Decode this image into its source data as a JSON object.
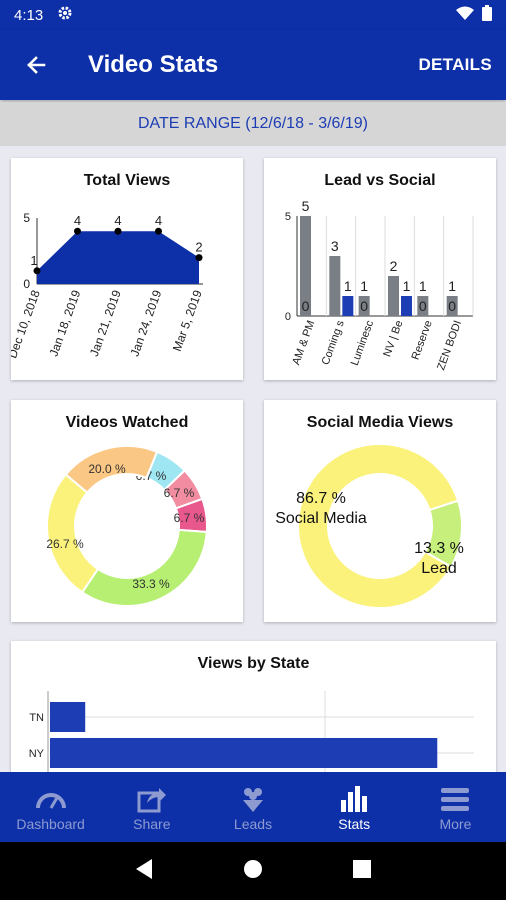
{
  "status": {
    "time": "4:13"
  },
  "appbar": {
    "title": "Video Stats",
    "details_label": "DETAILS"
  },
  "date_range": "DATE RANGE (12/6/18 - 3/6/19)",
  "colors": {
    "primary": "#0d2fa8",
    "bar_gray": "#7a7f85",
    "bar_blue": "#1d3db4"
  },
  "cards": {
    "total_views": {
      "title": "Total Views"
    },
    "lead_vs_social": {
      "title": "Lead vs Social"
    },
    "videos_watched": {
      "title": "Videos Watched"
    },
    "social_media_views": {
      "title": "Social Media Views"
    },
    "views_by_state": {
      "title": "Views by State"
    }
  },
  "nav": [
    {
      "label": "Dashboard",
      "icon": "gauge-icon"
    },
    {
      "label": "Share",
      "icon": "share-icon"
    },
    {
      "label": "Leads",
      "icon": "leads-icon"
    },
    {
      "label": "Stats",
      "icon": "bar-chart-icon",
      "active": true
    },
    {
      "label": "More",
      "icon": "menu-icon"
    }
  ],
  "chart_data": [
    {
      "type": "area",
      "title": "Total Views",
      "x": [
        "Dec 10, 2018",
        "Jan 18, 2019",
        "Jan 21, 2019",
        "Jan 24, 2019",
        "Mar 5, 2019"
      ],
      "values": [
        1,
        4,
        4,
        4,
        2
      ],
      "ylim": [
        0,
        5
      ],
      "yticks": [
        "0",
        "5"
      ]
    },
    {
      "type": "bar",
      "title": "Lead vs Social",
      "categories": [
        "AM & PM",
        "Coming s",
        "Luminesc",
        "NV | Be",
        "Reserve",
        "ZEN BODI"
      ],
      "series": [
        {
          "values": [
            5,
            3,
            1,
            2,
            1,
            1
          ],
          "color": "#7a7f85"
        },
        {
          "values": [
            0,
            1,
            0,
            1,
            0,
            0
          ],
          "color": "#1d3db4"
        }
      ],
      "ylim": [
        0,
        5
      ],
      "yticks": [
        "0",
        "5"
      ]
    },
    {
      "type": "pie",
      "title": "Videos Watched",
      "slices": [
        {
          "label": "6.7 %",
          "value": 6.7,
          "color": "#9ee6f2"
        },
        {
          "label": "6.7 %",
          "value": 6.7,
          "color": "#f28ca0"
        },
        {
          "label": "6.7 %",
          "value": 6.7,
          "color": "#e8588c"
        },
        {
          "label": "33.3 %",
          "value": 33.3,
          "color": "#b6ef72"
        },
        {
          "label": "26.7 %",
          "value": 26.7,
          "color": "#fbf27c"
        },
        {
          "label": "20.0 %",
          "value": 20.0,
          "color": "#fbc784"
        }
      ]
    },
    {
      "type": "pie",
      "title": "Social Media Views",
      "slices": [
        {
          "label": "13.3 %",
          "name": "Lead",
          "value": 13.3,
          "color": "#c6ef7c"
        },
        {
          "label": "86.7 %",
          "name": "Social Media",
          "value": 86.7,
          "color": "#fbf27c"
        }
      ]
    },
    {
      "type": "bar",
      "title": "Views by State",
      "orientation": "horizontal",
      "categories": [
        "TN",
        "NY"
      ],
      "values": [
        1,
        11
      ],
      "color": "#1d3db4"
    }
  ]
}
